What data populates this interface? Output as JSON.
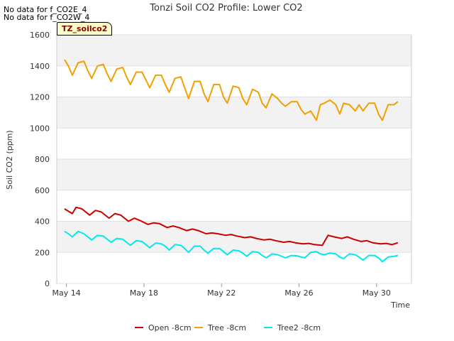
{
  "chart_data": {
    "type": "line",
    "title": "Tonzi Soil CO2 Profile: Lower CO2",
    "xlabel": "Time",
    "ylabel": "Soil CO2 (ppm)",
    "ylim": [
      0,
      1600
    ],
    "xlim_days": [
      13.5,
      31.8
    ],
    "yticks": [
      0,
      200,
      400,
      600,
      800,
      1000,
      1200,
      1400,
      1600
    ],
    "xticks": [
      {
        "day": 14,
        "label": "May 14"
      },
      {
        "day": 18,
        "label": "May 18"
      },
      {
        "day": 22,
        "label": "May 22"
      },
      {
        "day": 26,
        "label": "May 26"
      },
      {
        "day": 30,
        "label": "May 30"
      }
    ],
    "notes": [
      "No data for f_CO2E_4",
      "No data for f_CO2W_4"
    ],
    "site_label": "TZ_soilco2",
    "series": [
      {
        "name": "Open -8cm",
        "color": "#cc0000",
        "day": [
          13.9,
          14.3,
          14.5,
          14.8,
          15.2,
          15.5,
          15.8,
          16.2,
          16.5,
          16.8,
          17.2,
          17.5,
          17.8,
          18.2,
          18.5,
          18.8,
          19.2,
          19.5,
          19.8,
          20.2,
          20.5,
          20.8,
          21.2,
          21.5,
          21.8,
          22.2,
          22.5,
          22.8,
          23.2,
          23.5,
          23.8,
          24.2,
          24.5,
          24.8,
          25.2,
          25.5,
          25.8,
          26.2,
          26.5,
          26.8,
          27.2,
          27.5,
          27.8,
          28.2,
          28.5,
          28.8,
          29.2,
          29.5,
          29.8,
          30.2,
          30.5,
          30.8,
          31.1
        ],
        "values": [
          480,
          450,
          490,
          480,
          440,
          470,
          460,
          420,
          450,
          440,
          400,
          420,
          405,
          380,
          390,
          385,
          360,
          370,
          360,
          340,
          350,
          340,
          320,
          325,
          320,
          310,
          315,
          305,
          295,
          300,
          290,
          280,
          285,
          275,
          265,
          270,
          262,
          255,
          258,
          250,
          245,
          310,
          300,
          290,
          300,
          285,
          270,
          275,
          262,
          255,
          258,
          250,
          262
        ]
      },
      {
        "name": "Tree -8cm",
        "color": "#f0a000",
        "day": [
          13.9,
          14.1,
          14.3,
          14.6,
          14.9,
          15.1,
          15.3,
          15.6,
          15.9,
          16.1,
          16.3,
          16.6,
          16.9,
          17.1,
          17.3,
          17.6,
          17.9,
          18.1,
          18.3,
          18.6,
          18.9,
          19.1,
          19.3,
          19.6,
          19.9,
          20.1,
          20.3,
          20.6,
          20.9,
          21.1,
          21.3,
          21.6,
          21.9,
          22.1,
          22.3,
          22.6,
          22.9,
          23.1,
          23.3,
          23.6,
          23.9,
          24.1,
          24.3,
          24.6,
          24.9,
          25.1,
          25.3,
          25.6,
          25.9,
          26.1,
          26.3,
          26.6,
          26.9,
          27.1,
          27.3,
          27.6,
          27.9,
          28.1,
          28.3,
          28.6,
          28.9,
          29.1,
          29.3,
          29.6,
          29.9,
          30.1,
          30.3,
          30.6,
          30.9,
          31.1
        ],
        "values": [
          1440,
          1400,
          1340,
          1420,
          1430,
          1370,
          1320,
          1400,
          1410,
          1350,
          1300,
          1380,
          1390,
          1330,
          1280,
          1360,
          1360,
          1310,
          1260,
          1340,
          1340,
          1280,
          1230,
          1320,
          1330,
          1260,
          1190,
          1300,
          1300,
          1220,
          1170,
          1280,
          1280,
          1200,
          1160,
          1270,
          1260,
          1190,
          1150,
          1250,
          1230,
          1160,
          1130,
          1220,
          1190,
          1160,
          1140,
          1170,
          1170,
          1120,
          1090,
          1110,
          1050,
          1150,
          1160,
          1180,
          1150,
          1090,
          1160,
          1150,
          1110,
          1150,
          1110,
          1160,
          1160,
          1090,
          1050,
          1150,
          1150,
          1170
        ]
      },
      {
        "name": "Tree2 -8cm",
        "color": "#00e8f0",
        "day": [
          13.9,
          14.1,
          14.3,
          14.6,
          14.9,
          15.1,
          15.3,
          15.6,
          15.9,
          16.1,
          16.3,
          16.6,
          16.9,
          17.1,
          17.3,
          17.6,
          17.9,
          18.1,
          18.3,
          18.6,
          18.9,
          19.1,
          19.3,
          19.6,
          19.9,
          20.1,
          20.3,
          20.6,
          20.9,
          21.1,
          21.3,
          21.6,
          21.9,
          22.1,
          22.3,
          22.6,
          22.9,
          23.1,
          23.3,
          23.6,
          23.9,
          24.1,
          24.3,
          24.6,
          24.9,
          25.1,
          25.3,
          25.6,
          25.9,
          26.1,
          26.3,
          26.6,
          26.9,
          27.1,
          27.3,
          27.6,
          27.9,
          28.1,
          28.3,
          28.6,
          28.9,
          29.1,
          29.3,
          29.6,
          29.9,
          30.1,
          30.3,
          30.6,
          30.9,
          31.1
        ],
        "values": [
          335,
          320,
          300,
          335,
          320,
          300,
          280,
          310,
          305,
          285,
          265,
          290,
          285,
          265,
          245,
          275,
          270,
          250,
          230,
          260,
          255,
          240,
          215,
          250,
          245,
          225,
          200,
          240,
          240,
          215,
          195,
          225,
          225,
          205,
          185,
          215,
          210,
          195,
          175,
          205,
          200,
          180,
          165,
          190,
          185,
          175,
          165,
          180,
          178,
          170,
          165,
          200,
          205,
          190,
          185,
          195,
          190,
          170,
          160,
          190,
          185,
          170,
          150,
          180,
          180,
          165,
          140,
          170,
          175,
          180
        ]
      }
    ],
    "legend": {
      "placement": "bottom-center"
    }
  }
}
